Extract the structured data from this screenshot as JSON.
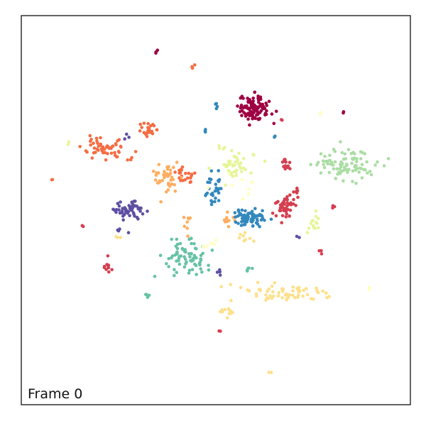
{
  "chart_data": {
    "type": "scatter",
    "title": "",
    "xlabel": "",
    "ylabel": "",
    "xlim": [
      0,
      100
    ],
    "ylim": [
      0,
      100
    ],
    "grid": false,
    "ticks": false,
    "annotation": "Frame 0",
    "palette": [
      "#9e0142",
      "#d53e4f",
      "#f46d43",
      "#fdae61",
      "#fee08b",
      "#ffffbf",
      "#e6f598",
      "#abdda4",
      "#66c2a5",
      "#3288bd",
      "#5e4fa2"
    ],
    "clusters": [
      {
        "color": "#9e0142",
        "cx": 60,
        "cy": 76,
        "sx": 2.0,
        "sy": 1.6,
        "n": 110
      },
      {
        "color": "#9e0142",
        "cx": 35,
        "cy": 91,
        "sx": 0.4,
        "sy": 0.3,
        "n": 3
      },
      {
        "color": "#9e0142",
        "cx": 83,
        "cy": 75,
        "sx": 0.2,
        "sy": 0.2,
        "n": 2
      },
      {
        "color": "#f46d43",
        "cx": 22,
        "cy": 66,
        "sx": 2.6,
        "sy": 1.6,
        "n": 55
      },
      {
        "color": "#f46d43",
        "cx": 33,
        "cy": 71,
        "sx": 1.6,
        "sy": 1.2,
        "n": 25
      },
      {
        "color": "#f46d43",
        "cx": 42,
        "cy": 59,
        "sx": 1.4,
        "sy": 1.2,
        "n": 22
      },
      {
        "color": "#f46d43",
        "cx": 44,
        "cy": 87,
        "sx": 0.3,
        "sy": 0.3,
        "n": 3
      },
      {
        "color": "#f46d43",
        "cx": 8,
        "cy": 58,
        "sx": 0.2,
        "sy": 0.2,
        "n": 2
      },
      {
        "color": "#fdae61",
        "cx": 37,
        "cy": 59,
        "sx": 1.4,
        "sy": 2.4,
        "n": 40
      },
      {
        "color": "#fdae61",
        "cx": 43,
        "cy": 47,
        "sx": 0.8,
        "sy": 1.2,
        "n": 8
      },
      {
        "color": "#fdae61",
        "cx": 53,
        "cy": 47,
        "sx": 1.0,
        "sy": 1.4,
        "n": 10
      },
      {
        "color": "#e6f598",
        "cx": 55,
        "cy": 61,
        "sx": 2.2,
        "sy": 1.6,
        "n": 45
      },
      {
        "color": "#e6f598",
        "cx": 52,
        "cy": 66,
        "sx": 0.6,
        "sy": 0.6,
        "n": 4
      },
      {
        "color": "#e6f598",
        "cx": 75,
        "cy": 46,
        "sx": 0.7,
        "sy": 1.3,
        "n": 14
      },
      {
        "color": "#e6f598",
        "cx": 12,
        "cy": 67,
        "sx": 0.2,
        "sy": 0.2,
        "n": 2
      },
      {
        "color": "#abdda4",
        "cx": 84,
        "cy": 62,
        "sx": 4.2,
        "sy": 2.0,
        "n": 90
      },
      {
        "color": "#66c2a5",
        "cx": 42,
        "cy": 38,
        "sx": 3.2,
        "sy": 2.4,
        "n": 75
      },
      {
        "color": "#66c2a5",
        "cx": 58,
        "cy": 35,
        "sx": 0.6,
        "sy": 0.3,
        "n": 6
      },
      {
        "color": "#66c2a5",
        "cx": 32,
        "cy": 28,
        "sx": 0.5,
        "sy": 0.4,
        "n": 5
      },
      {
        "color": "#3288bd",
        "cx": 59,
        "cy": 48,
        "sx": 2.0,
        "sy": 1.3,
        "n": 70
      },
      {
        "color": "#3288bd",
        "cx": 49,
        "cy": 55,
        "sx": 1.1,
        "sy": 2.0,
        "n": 30
      },
      {
        "color": "#3288bd",
        "cx": 50,
        "cy": 77,
        "sx": 0.3,
        "sy": 0.4,
        "n": 4
      },
      {
        "color": "#3288bd",
        "cx": 47,
        "cy": 70,
        "sx": 0.3,
        "sy": 0.3,
        "n": 3
      },
      {
        "color": "#3288bd",
        "cx": 65,
        "cy": 69,
        "sx": 0.2,
        "sy": 0.2,
        "n": 2
      },
      {
        "color": "#5e4fa2",
        "cx": 28,
        "cy": 50,
        "sx": 2.6,
        "sy": 1.1,
        "n": 55
      },
      {
        "color": "#5e4fa2",
        "cx": 26,
        "cy": 45,
        "sx": 0.8,
        "sy": 0.4,
        "n": 4
      },
      {
        "color": "#5e4fa2",
        "cx": 27,
        "cy": 69,
        "sx": 0.4,
        "sy": 0.3,
        "n": 3
      },
      {
        "color": "#5e4fa2",
        "cx": 51,
        "cy": 34,
        "sx": 0.4,
        "sy": 0.4,
        "n": 4
      },
      {
        "color": "#5e4fa2",
        "cx": 71,
        "cy": 43,
        "sx": 0.2,
        "sy": 0.2,
        "n": 2
      },
      {
        "color": "#d53e4f",
        "cx": 68,
        "cy": 51,
        "sx": 1.4,
        "sy": 1.5,
        "n": 45
      },
      {
        "color": "#d53e4f",
        "cx": 68,
        "cy": 62,
        "sx": 0.5,
        "sy": 1.3,
        "n": 12
      },
      {
        "color": "#d53e4f",
        "cx": 71,
        "cy": 55,
        "sx": 0.3,
        "sy": 0.7,
        "n": 5
      },
      {
        "color": "#d53e4f",
        "cx": 22,
        "cy": 36,
        "sx": 0.8,
        "sy": 1.0,
        "n": 10
      },
      {
        "color": "#d53e4f",
        "cx": 16,
        "cy": 46,
        "sx": 0.2,
        "sy": 0.2,
        "n": 2
      },
      {
        "color": "#d53e4f",
        "cx": 77,
        "cy": 39,
        "sx": 0.4,
        "sy": 0.3,
        "n": 3
      },
      {
        "color": "#d53e4f",
        "cx": 80,
        "cy": 51,
        "sx": 0.3,
        "sy": 0.3,
        "n": 3
      },
      {
        "color": "#d53e4f",
        "cx": 67,
        "cy": 73,
        "sx": 0.2,
        "sy": 0.2,
        "n": 2
      },
      {
        "color": "#d53e4f",
        "cx": 51,
        "cy": 19,
        "sx": 0.2,
        "sy": 0.2,
        "n": 2
      },
      {
        "color": "#fee08b",
        "cx": 68,
        "cy": 29,
        "sx": 6.0,
        "sy": 1.2,
        "n": 65
      },
      {
        "color": "#fee08b",
        "cx": 53,
        "cy": 24,
        "sx": 1.2,
        "sy": 0.9,
        "n": 12
      },
      {
        "color": "#fee08b",
        "cx": 57,
        "cy": 43,
        "sx": 1.4,
        "sy": 0.7,
        "n": 8
      },
      {
        "color": "#fee08b",
        "cx": 64,
        "cy": 8,
        "sx": 0.2,
        "sy": 0.2,
        "n": 2
      },
      {
        "color": "#fee08b",
        "cx": 25,
        "cy": 43,
        "sx": 0.3,
        "sy": 0.3,
        "n": 3
      },
      {
        "color": "#ffffbf",
        "cx": 49,
        "cy": 41,
        "sx": 1.0,
        "sy": 1.0,
        "n": 6
      },
      {
        "color": "#ffffbf",
        "cx": 77,
        "cy": 75,
        "sx": 0.2,
        "sy": 0.2,
        "n": 2
      },
      {
        "color": "#ffffbf",
        "cx": 55,
        "cy": 55,
        "sx": 3.0,
        "sy": 1.8,
        "n": 8
      },
      {
        "color": "#ffffbf",
        "cx": 89,
        "cy": 30,
        "sx": 0.3,
        "sy": 0.3,
        "n": 2
      }
    ]
  }
}
